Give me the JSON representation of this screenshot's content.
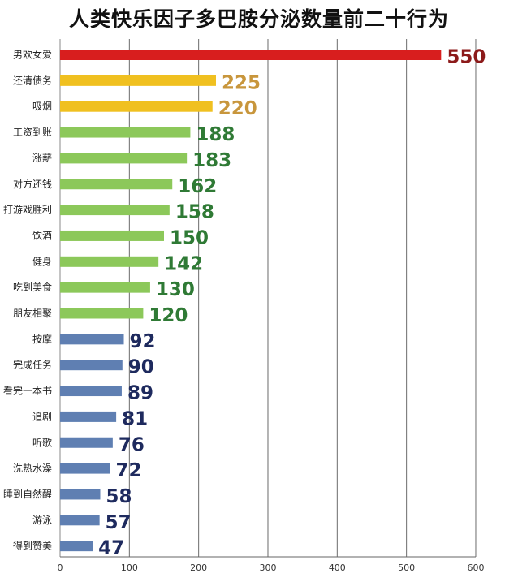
{
  "chart_data": {
    "type": "bar",
    "orientation": "horizontal",
    "title": "人类快乐因子多巴胺分泌数量前二十行为",
    "categories": [
      "男欢女爱",
      "还清债务",
      "吸烟",
      "工资到账",
      "涨薪",
      "对方还钱",
      "打游戏胜利",
      "饮酒",
      "健身",
      "吃到美食",
      "朋友相聚",
      "按摩",
      "完成任务",
      "看完一本书",
      "追剧",
      "听歌",
      "洗热水澡",
      "睡到自然醒",
      "游泳",
      "得到赞美"
    ],
    "values": [
      550,
      225,
      220,
      188,
      183,
      162,
      158,
      150,
      142,
      130,
      120,
      92,
      90,
      89,
      81,
      76,
      72,
      58,
      57,
      47
    ],
    "value_labels": [
      "550",
      "225",
      "220",
      "188",
      "183",
      "162",
      "158",
      "150",
      "142",
      "130",
      "120",
      "92",
      "90",
      "89",
      "81",
      "76",
      "72",
      "58",
      "57",
      "47"
    ],
    "bar_colors": [
      "#d81e1e",
      "#f0c020",
      "#f0c020",
      "#8cc85a",
      "#8cc85a",
      "#8cc85a",
      "#8cc85a",
      "#8cc85a",
      "#8cc85a",
      "#8cc85a",
      "#8cc85a",
      "#5f7fb2",
      "#5f7fb2",
      "#5f7fb2",
      "#5f7fb2",
      "#5f7fb2",
      "#5f7fb2",
      "#5f7fb2",
      "#5f7fb2",
      "#5f7fb2"
    ],
    "label_colors": [
      "#8c1a1a",
      "#c8963c",
      "#c8963c",
      "#2f7a35",
      "#2f7a35",
      "#2f7a35",
      "#2f7a35",
      "#2f7a35",
      "#2f7a35",
      "#2f7a35",
      "#2f7a35",
      "#1e2a5e",
      "#1e2a5e",
      "#1e2a5e",
      "#1e2a5e",
      "#1e2a5e",
      "#1e2a5e",
      "#1e2a5e",
      "#1e2a5e",
      "#1e2a5e"
    ],
    "xlim": [
      0,
      600
    ],
    "xticks": [
      "0",
      "100",
      "200",
      "300",
      "400",
      "500",
      "600"
    ],
    "xlabel": "",
    "ylabel": "",
    "grid": true,
    "grid_color": "#6b6b6b"
  }
}
